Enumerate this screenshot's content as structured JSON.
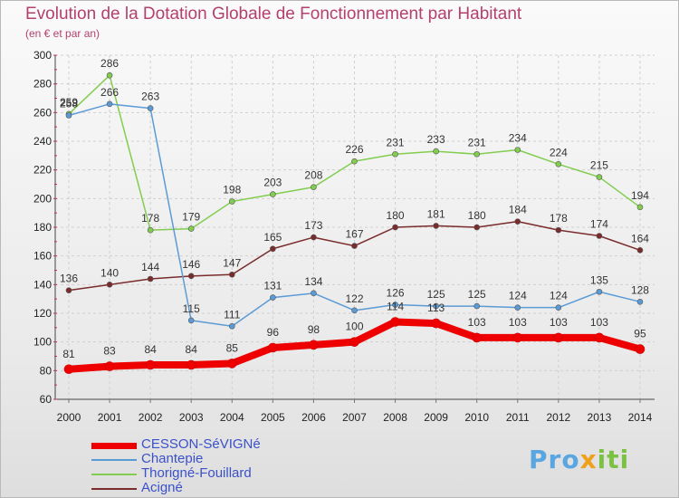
{
  "chart_data": {
    "type": "line",
    "title": "Evolution de la Dotation Globale de Fonctionnement par Habitant",
    "subtitle": "(en € et par an)",
    "xlabel": "",
    "ylabel": "",
    "ylim": [
      60,
      300
    ],
    "y_ticks": [
      60,
      80,
      100,
      120,
      140,
      160,
      180,
      200,
      220,
      240,
      260,
      280,
      300
    ],
    "categories": [
      "2000",
      "2001",
      "2002",
      "2003",
      "2004",
      "2005",
      "2006",
      "2007",
      "2008",
      "2009",
      "2010",
      "2011",
      "2012",
      "2013",
      "2014"
    ],
    "legend_position": "bottom-left",
    "series": [
      {
        "name": "Aci¬gné",
        "label_text": "Acigné",
        "color": "#7a2b2b",
        "values": [
          136,
          140,
          144,
          146,
          147,
          165,
          173,
          167,
          180,
          181,
          180,
          184,
          178,
          174,
          164
        ]
      },
      {
        "name": "Thorigné-Fouillard",
        "color": "#82cd50",
        "values": [
          259,
          286,
          178,
          179,
          198,
          203,
          208,
          226,
          231,
          233,
          231,
          234,
          224,
          215,
          194
        ]
      },
      {
        "name": "Chantepie",
        "color": "#5b9bd5",
        "values": [
          258,
          266,
          263,
          115,
          111,
          131,
          134,
          122,
          126,
          125,
          125,
          124,
          124,
          135,
          128
        ]
      },
      {
        "name": "CESSON-SéVIGNé",
        "color": "#ee0000",
        "values": [
          81,
          83,
          84,
          84,
          85,
          96,
          98,
          100,
          114,
          113,
          103,
          103,
          103,
          103,
          95
        ]
      }
    ]
  },
  "legend": {
    "items": [
      {
        "label": "CESSON-SéVIGNé",
        "color": "#ee0000"
      },
      {
        "label": "Chantepie",
        "color": "#5b9bd5"
      },
      {
        "label": "Thorigné-Fouillard",
        "color": "#82cd50"
      },
      {
        "label": "Acigné",
        "color": "#7a2b2b"
      }
    ]
  },
  "logo": {
    "part1": "Pro",
    "part2": "x",
    "part3": "iti"
  }
}
